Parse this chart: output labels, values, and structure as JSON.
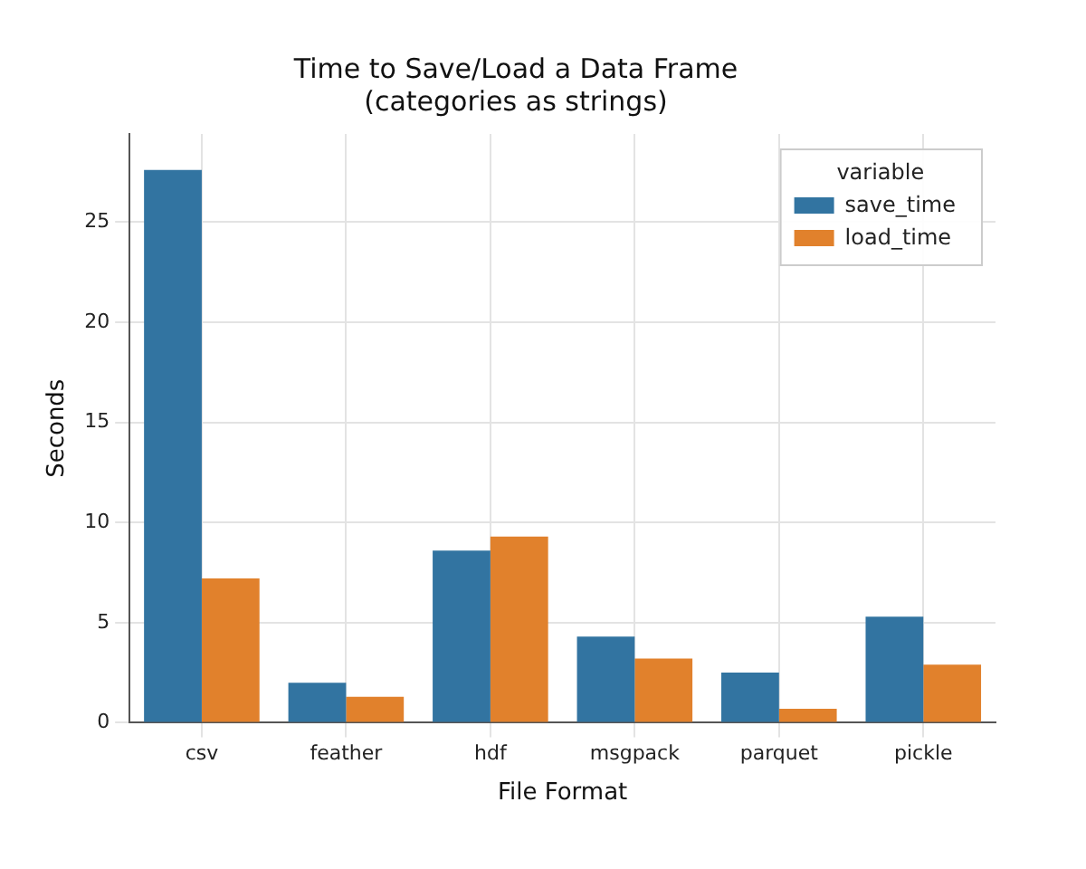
{
  "chart_data": {
    "type": "bar",
    "title": "Time to Save/Load a Data Frame\n(categories as strings)",
    "xlabel": "File Format",
    "ylabel": "Seconds",
    "legend_title": "variable",
    "categories": [
      "csv",
      "feather",
      "hdf",
      "msgpack",
      "parquet",
      "pickle"
    ],
    "series": [
      {
        "name": "save_time",
        "color": "#3274a1",
        "values": [
          27.6,
          2.0,
          8.6,
          4.3,
          2.5,
          5.3
        ]
      },
      {
        "name": "load_time",
        "color": "#e1812c",
        "values": [
          7.2,
          1.3,
          9.3,
          3.2,
          0.7,
          2.9
        ]
      }
    ],
    "ylim": [
      0,
      29.4
    ],
    "yticks": [
      0,
      5,
      10,
      15,
      20,
      25
    ],
    "grid": true,
    "legend": "top right"
  }
}
